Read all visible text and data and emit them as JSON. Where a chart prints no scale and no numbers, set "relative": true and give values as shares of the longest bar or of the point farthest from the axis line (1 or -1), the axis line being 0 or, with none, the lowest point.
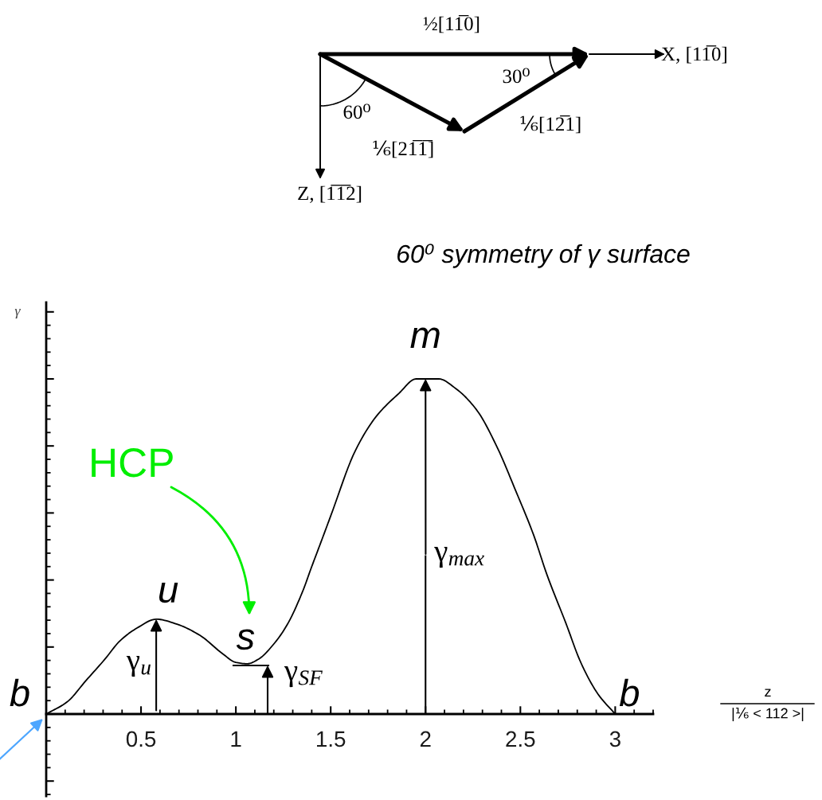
{
  "chart_data": {
    "type": "line",
    "title": "60⁰ symmetry of γ surface",
    "ylabel": "γ",
    "relative": true,
    "tick_labels": "x",
    "x": [
      0,
      0.11,
      0.21,
      0.31,
      0.39,
      0.48,
      0.58,
      0.69,
      0.81,
      0.93,
      1.0,
      1.06,
      1.12,
      1.2,
      1.27,
      1.35,
      1.4,
      1.45,
      1.5,
      1.63,
      1.74,
      1.86,
      1.95,
      2.0,
      2.07,
      2.16,
      2.27,
      2.37,
      2.48,
      2.57,
      2.64,
      2.74,
      2.82,
      2.91,
      3.0
    ],
    "series": [
      {
        "color": "#000000",
        "values": [
          0,
          0.036,
          0.1,
          0.164,
          0.219,
          0.257,
          0.283,
          0.268,
          0.235,
          0.18,
          0.154,
          0.15,
          0.164,
          0.209,
          0.266,
          0.363,
          0.44,
          0.515,
          0.591,
          0.786,
          0.888,
          0.957,
          1.0,
          1.0,
          1.0,
          0.971,
          0.907,
          0.805,
          0.66,
          0.534,
          0.416,
          0.271,
          0.152,
          0.059,
          0
        ]
      }
    ],
    "xlim": [
      0,
      3.2
    ],
    "xticks": [
      0.5,
      1,
      1.5,
      2,
      2.5,
      3
    ],
    "annotations": [
      "½[11̅0]",
      "X, [11̅0]",
      "30⁰",
      "60⁰",
      "⅙[12̅1]",
      "⅙[21̅1̅]",
      "Z, [1̅1̅2]",
      {
        "text": "m",
        "x": 2,
        "y": 1
      },
      {
        "text": "u",
        "x": 0.58,
        "y": 0.283
      },
      {
        "text": "s",
        "x": 1.06,
        "y": 0.15
      },
      {
        "text": "b",
        "x": 0,
        "y": 0
      },
      {
        "text": "b",
        "x": 3.0,
        "y": 0
      },
      {
        "text": "γ$_{max}$",
        "x": 2,
        "y": 1
      },
      {
        "text": "γ$_{u}$",
        "x": 0.58,
        "y": 0.283
      },
      "γ$_{SF}$",
      "HCP",
      "z\n|⅙ < 112 >|"
    ]
  }
}
